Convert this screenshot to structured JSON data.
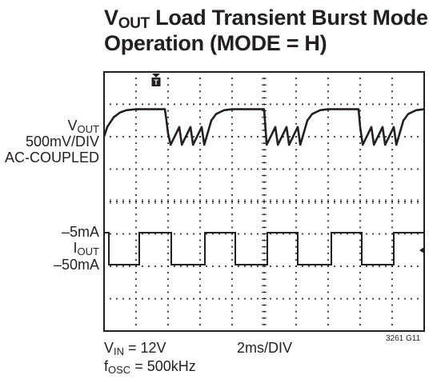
{
  "title": {
    "line1_main": "V",
    "line1_sub": "OUT",
    "line1_rest": " Load Transient Burst Mode",
    "line2": "Operation (MODE = H)"
  },
  "labels": {
    "vout_main": "V",
    "vout_sub": "OUT",
    "vout_scale": "500mV/DIV",
    "vout_coupling": "AC-COUPLED",
    "iout_high": "–5mA",
    "iout_main": "I",
    "iout_sub": "OUT",
    "iout_low": "–50mA",
    "vin_main": "V",
    "vin_sub": "IN",
    "vin_rest": " = 12V",
    "fosc_main": "f",
    "fosc_sub": "OSC",
    "fosc_rest": " = 500kHz",
    "timebase": "2ms/DIV",
    "figure_id": "3261 G11",
    "trigger_marker": "T"
  },
  "chart_data": {
    "type": "line",
    "subtype": "oscilloscope",
    "grid": true,
    "divisions": {
      "x": 10,
      "y": 8
    },
    "x_units": "div (2ms/DIV)",
    "xlim": [
      0,
      10
    ],
    "series": [
      {
        "name": "VOUT",
        "y_units": "div (500mV/DIV, AC-COUPLED)",
        "x": [
          0,
          0.1,
          0.3,
          0.5,
          0.7,
          1.0,
          1.5,
          1.9,
          1.95,
          2.0,
          2.08,
          2.35,
          2.43,
          2.7,
          2.78,
          3.05,
          3.13,
          3.35,
          3.5,
          3.75,
          4.0,
          4.5,
          5.0,
          5.08,
          5.35,
          5.43,
          5.7,
          5.78,
          6.05,
          6.13,
          6.35,
          6.5,
          6.75,
          7.0,
          7.5,
          7.95,
          8.0,
          8.08,
          8.35,
          8.43,
          8.7,
          8.78,
          9.05,
          9.13,
          9.35,
          9.5,
          9.75,
          10.0
        ],
        "y": [
          6.0,
          6.3,
          6.6,
          6.75,
          6.82,
          6.85,
          6.85,
          6.85,
          6.5,
          6.1,
          5.75,
          6.3,
          5.75,
          6.3,
          5.75,
          6.3,
          5.75,
          6.5,
          6.7,
          6.82,
          6.85,
          6.85,
          6.85,
          5.75,
          6.3,
          5.75,
          6.3,
          5.75,
          6.3,
          5.75,
          6.5,
          6.7,
          6.82,
          6.85,
          6.85,
          6.85,
          6.3,
          5.75,
          6.3,
          5.75,
          6.3,
          5.75,
          6.3,
          5.75,
          6.5,
          6.7,
          6.82,
          6.85
        ]
      },
      {
        "name": "IOUT",
        "y_units": "mA",
        "x": [
          0,
          0.15,
          0.15,
          1.1,
          1.1,
          2.1,
          2.1,
          3.15,
          3.15,
          4.1,
          4.1,
          5.1,
          5.1,
          6.05,
          6.05,
          7.1,
          7.1,
          8.05,
          8.05,
          9.05,
          9.05,
          10.0
        ],
        "y": [
          -5,
          -5,
          -50,
          -50,
          -5,
          -5,
          -50,
          -50,
          -5,
          -5,
          -50,
          -50,
          -5,
          -5,
          -50,
          -50,
          -5,
          -5,
          -50,
          -50,
          -5,
          -5
        ]
      }
    ]
  }
}
